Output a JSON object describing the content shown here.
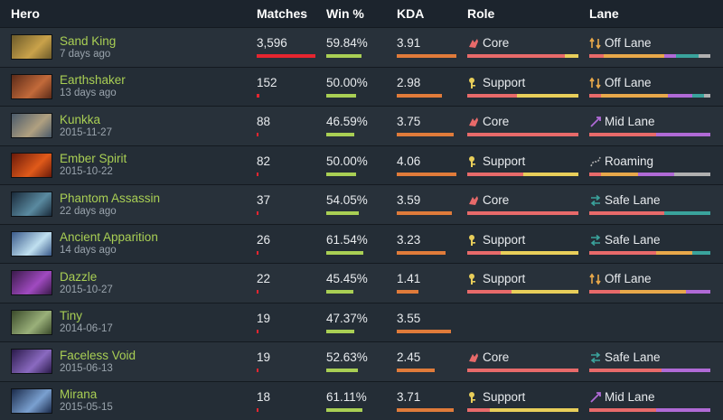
{
  "header": {
    "hero": "Hero",
    "matches": "Matches",
    "winrate": "Win %",
    "kda": "KDA",
    "role": "Role",
    "lane": "Lane"
  },
  "colors": {
    "matches_bar": "#e6252f",
    "winrate_bar": "#a9cf54",
    "kda_bar": "#e07b3a",
    "core": "#e86a6a",
    "support": "#e8ce5a",
    "lane_offlane": "#e8a84a",
    "lane_mid": "#b06ad6",
    "lane_safe": "#3aa39c",
    "lane_roaming": "#b0b0b0"
  },
  "rows": [
    {
      "name": "Sand King",
      "date": "7 days ago",
      "avatar": "sand-king-avatar",
      "matches": "3,596",
      "matches_frac": 1.0,
      "winrate": "59.84%",
      "winrate_frac": 0.5984,
      "kda": "3.91",
      "kda_frac": 1.0,
      "role": "Core",
      "role_icon": "core-icon",
      "role_split": [
        0.88,
        0.12
      ],
      "lane": "Off Lane",
      "lane_icon": "offlane-icon",
      "lane_split": [
        0.12,
        0.5,
        0.1,
        0.18,
        0.1
      ]
    },
    {
      "name": "Earthshaker",
      "date": "13 days ago",
      "avatar": "earthshaker-avatar",
      "matches": "152",
      "matches_frac": 0.04,
      "winrate": "50.00%",
      "winrate_frac": 0.5,
      "kda": "2.98",
      "kda_frac": 0.76,
      "role": "Support",
      "role_icon": "support-icon",
      "role_split": [
        0.45,
        0.55
      ],
      "lane": "Off Lane",
      "lane_icon": "offlane-icon",
      "lane_split": [
        0.1,
        0.55,
        0.2,
        0.1,
        0.05
      ]
    },
    {
      "name": "Kunkka",
      "date": "2015-11-27",
      "avatar": "kunkka-avatar",
      "matches": "88",
      "matches_frac": 0.025,
      "winrate": "46.59%",
      "winrate_frac": 0.4659,
      "kda": "3.75",
      "kda_frac": 0.96,
      "role": "Core",
      "role_icon": "core-icon",
      "role_split": [
        1.0,
        0.0
      ],
      "lane": "Mid Lane",
      "lane_icon": "midlane-icon",
      "lane_split": [
        0.55,
        0.0,
        0.45,
        0.0,
        0.0
      ]
    },
    {
      "name": "Ember Spirit",
      "date": "2015-10-22",
      "avatar": "ember-spirit-avatar",
      "matches": "82",
      "matches_frac": 0.023,
      "winrate": "50.00%",
      "winrate_frac": 0.5,
      "kda": "4.06",
      "kda_frac": 1.0,
      "role": "Support",
      "role_icon": "support-icon",
      "role_split": [
        0.5,
        0.5
      ],
      "lane": "Roaming",
      "lane_icon": "roaming-icon",
      "lane_split": [
        0.1,
        0.3,
        0.3,
        0.0,
        0.3
      ]
    },
    {
      "name": "Phantom Assassin",
      "date": "22 days ago",
      "avatar": "phantom-assassin-avatar",
      "matches": "37",
      "matches_frac": 0.01,
      "winrate": "54.05%",
      "winrate_frac": 0.5405,
      "kda": "3.59",
      "kda_frac": 0.92,
      "role": "Core",
      "role_icon": "core-icon",
      "role_split": [
        1.0,
        0.0
      ],
      "lane": "Safe Lane",
      "lane_icon": "safelane-icon",
      "lane_split": [
        0.62,
        0.0,
        0.0,
        0.38,
        0.0
      ]
    },
    {
      "name": "Ancient Apparition",
      "date": "14 days ago",
      "avatar": "ancient-apparition-avatar",
      "matches": "26",
      "matches_frac": 0.007,
      "winrate": "61.54%",
      "winrate_frac": 0.6154,
      "kda": "3.23",
      "kda_frac": 0.82,
      "role": "Support",
      "role_icon": "support-icon",
      "role_split": [
        0.3,
        0.7
      ],
      "lane": "Safe Lane",
      "lane_icon": "safelane-icon",
      "lane_split": [
        0.55,
        0.3,
        0.0,
        0.15,
        0.0
      ]
    },
    {
      "name": "Dazzle",
      "date": "2015-10-27",
      "avatar": "dazzle-avatar",
      "matches": "22",
      "matches_frac": 0.006,
      "winrate": "45.45%",
      "winrate_frac": 0.4545,
      "kda": "1.41",
      "kda_frac": 0.36,
      "role": "Support",
      "role_icon": "support-icon",
      "role_split": [
        0.4,
        0.6
      ],
      "lane": "Off Lane",
      "lane_icon": "offlane-icon",
      "lane_split": [
        0.25,
        0.55,
        0.2,
        0.0,
        0.0
      ]
    },
    {
      "name": "Tiny",
      "date": "2014-06-17",
      "avatar": "tiny-avatar",
      "matches": "19",
      "matches_frac": 0.005,
      "winrate": "47.37%",
      "winrate_frac": 0.4737,
      "kda": "3.55",
      "kda_frac": 0.91,
      "role": "",
      "role_icon": "",
      "role_split": [
        0,
        0
      ],
      "lane": "",
      "lane_icon": "",
      "lane_split": [
        0,
        0,
        0,
        0,
        0
      ]
    },
    {
      "name": "Faceless Void",
      "date": "2015-06-13",
      "avatar": "faceless-void-avatar",
      "matches": "19",
      "matches_frac": 0.005,
      "winrate": "52.63%",
      "winrate_frac": 0.5263,
      "kda": "2.45",
      "kda_frac": 0.63,
      "role": "Core",
      "role_icon": "core-icon",
      "role_split": [
        1.0,
        0.0
      ],
      "lane": "Safe Lane",
      "lane_icon": "safelane-icon",
      "lane_split": [
        0.6,
        0.0,
        0.4,
        0.0,
        0.0
      ]
    },
    {
      "name": "Mirana",
      "date": "2015-05-15",
      "avatar": "mirana-avatar",
      "matches": "18",
      "matches_frac": 0.005,
      "winrate": "61.11%",
      "winrate_frac": 0.6111,
      "kda": "3.71",
      "kda_frac": 0.95,
      "role": "Support",
      "role_icon": "support-icon",
      "role_split": [
        0.2,
        0.8
      ],
      "lane": "Mid Lane",
      "lane_icon": "midlane-icon",
      "lane_split": [
        0.55,
        0.0,
        0.45,
        0.0,
        0.0
      ]
    }
  ]
}
